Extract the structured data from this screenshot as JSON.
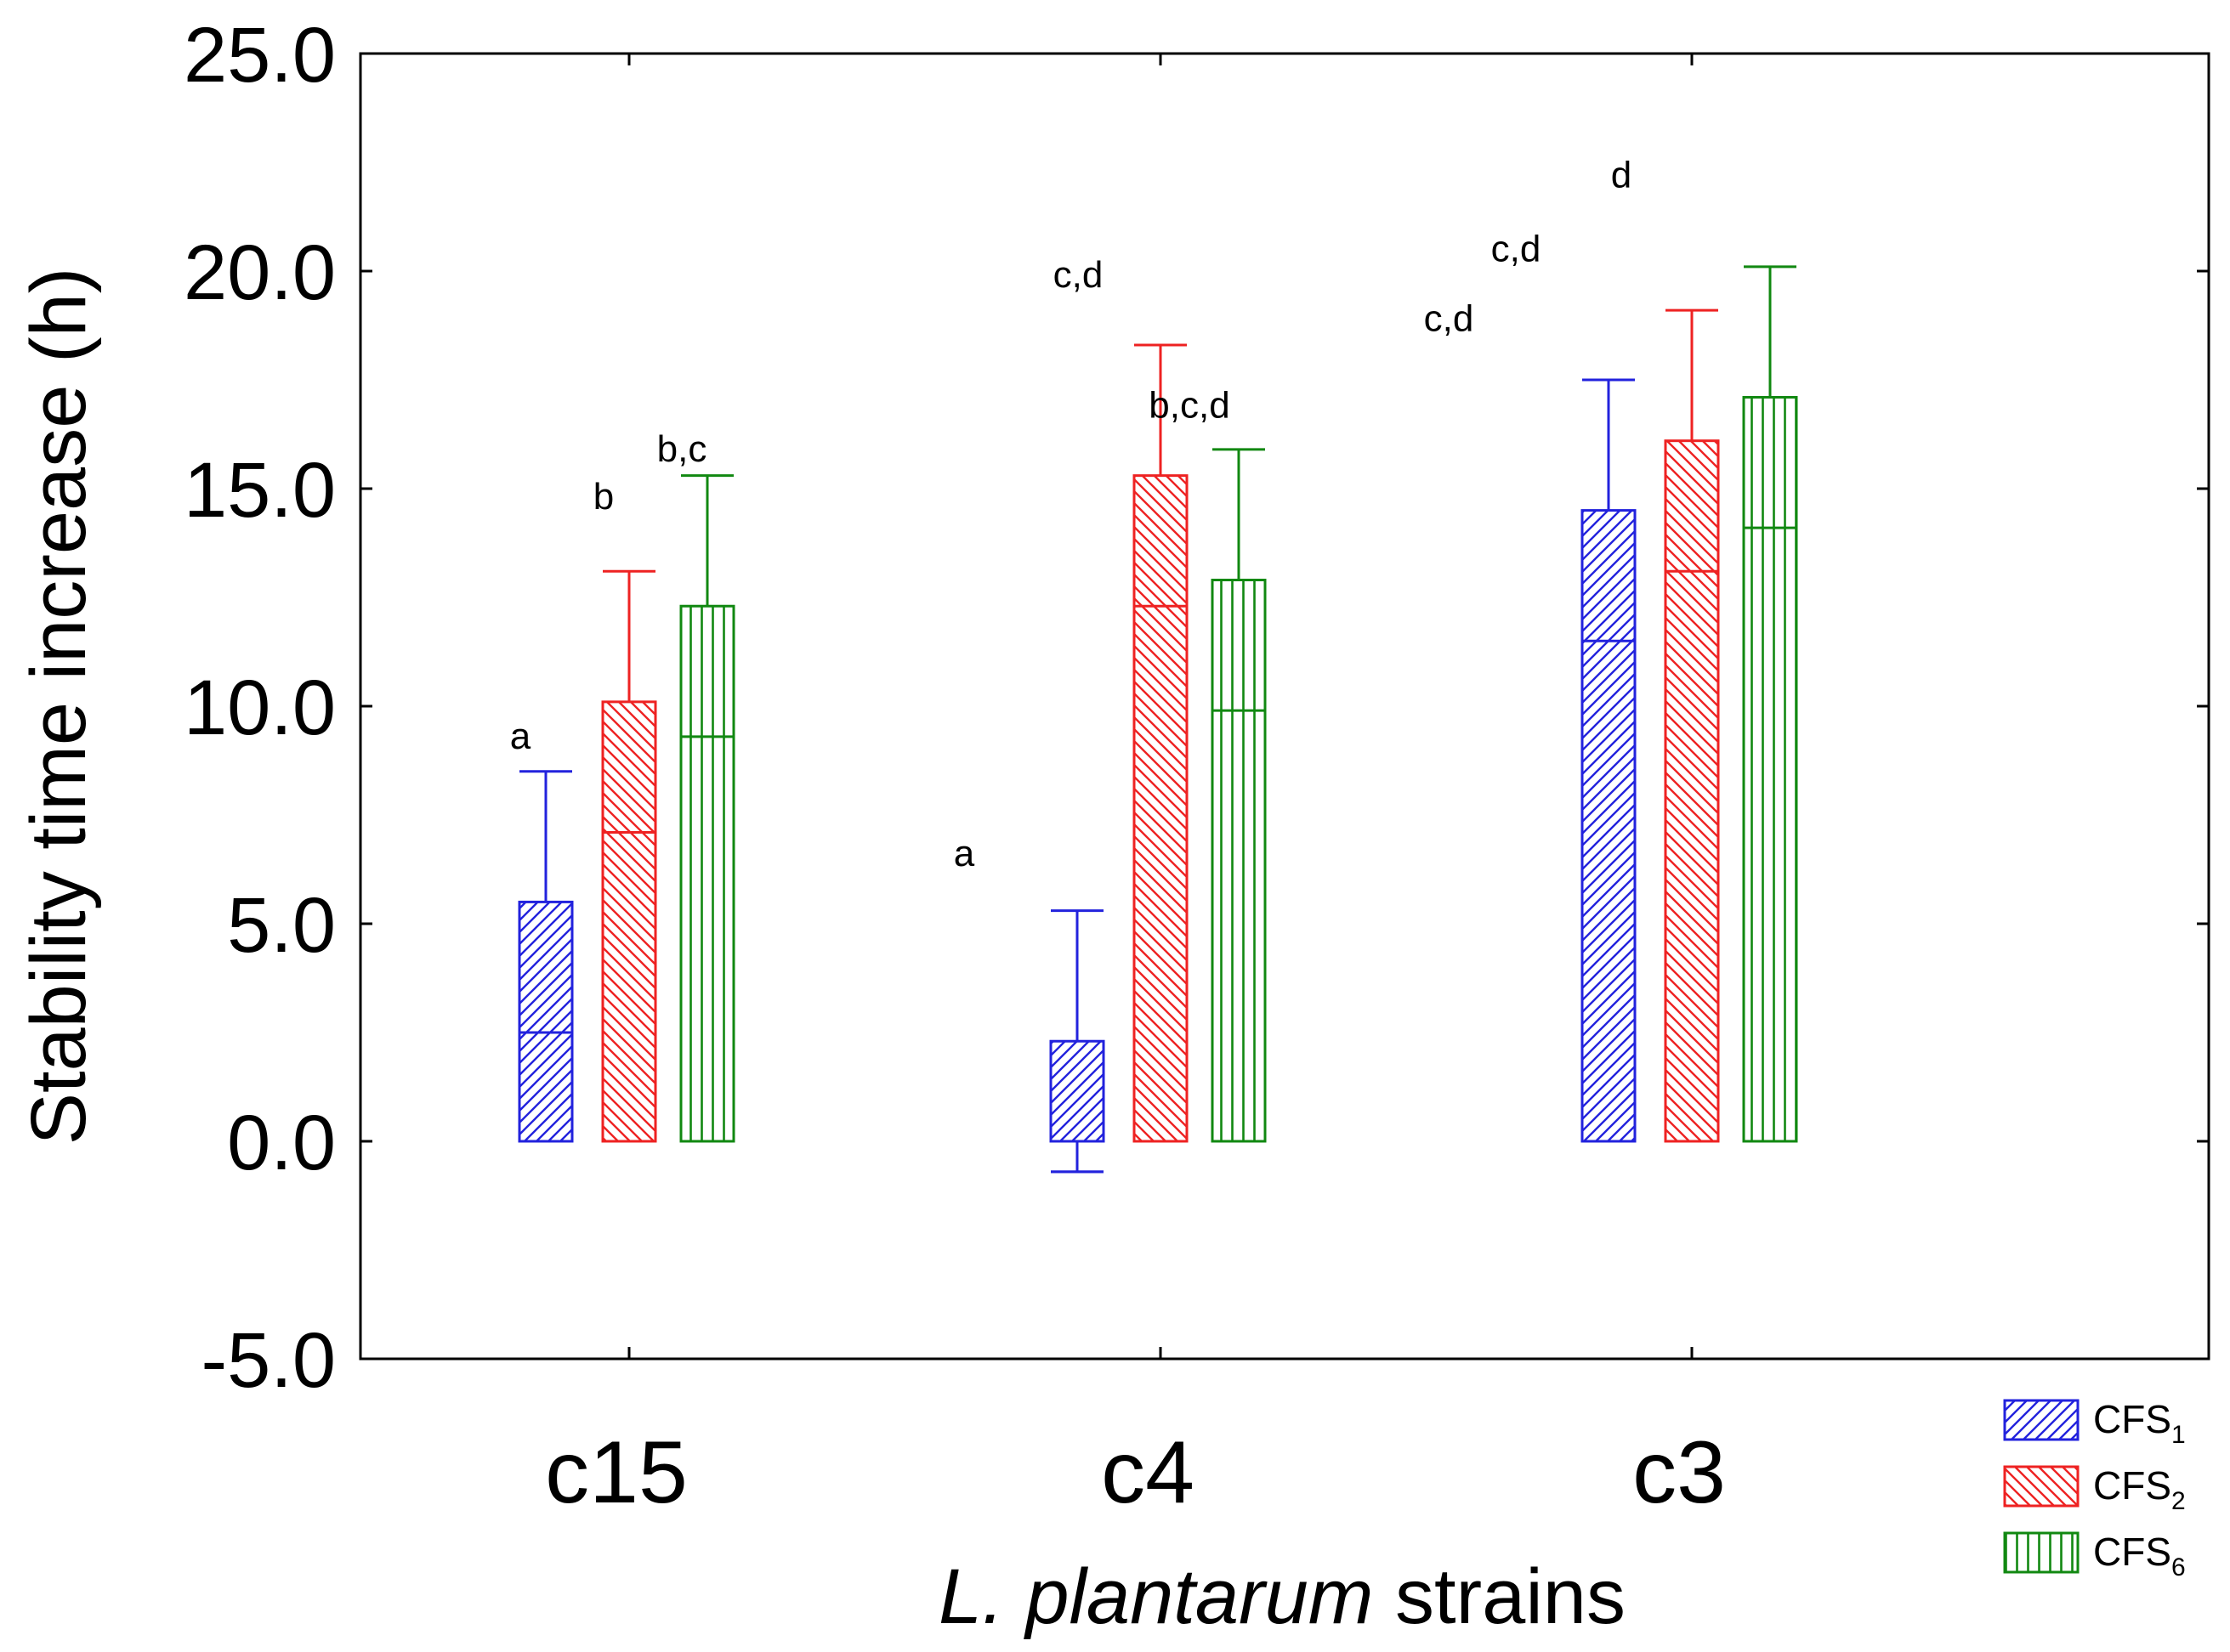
{
  "chart_data": {
    "type": "bar",
    "xlabel_italic": "L. plantarum",
    "xlabel_rest": " strains",
    "ylabel": "Stability time increase (h)",
    "ylim": [
      -5.0,
      25.0
    ],
    "yticks": [
      "-5.0",
      "0.0",
      "5.0",
      "10.0",
      "15.0",
      "20.0",
      "25.0"
    ],
    "ytick_values": [
      -5,
      0,
      5,
      10,
      15,
      20,
      25
    ],
    "categories": [
      "c15",
      "c4",
      "c3"
    ],
    "series": [
      {
        "name": "CFS1",
        "legend_base": "CFS",
        "legend_sub": "1",
        "color": "#2222dd",
        "pattern": "diag-up",
        "values": [
          5.5,
          2.3,
          14.5
        ],
        "err": [
          3.0,
          3.0,
          3.0
        ],
        "letters": [
          "a",
          "a",
          "c,d"
        ],
        "letter_y": [
          9.3,
          6.6,
          18.9
        ]
      },
      {
        "name": "CFS2",
        "legend_base": "CFS",
        "legend_sub": "2",
        "color": "#ee2222",
        "pattern": "diag-down",
        "values": [
          10.1,
          15.3,
          16.1
        ],
        "err": [
          3.0,
          3.0,
          3.0
        ],
        "letters": [
          "b",
          "c,d",
          "c,d"
        ],
        "letter_y": [
          14.8,
          19.9,
          20.5
        ]
      },
      {
        "name": "CFS6",
        "legend_base": "CFS",
        "legend_sub": "6",
        "color": "#118811",
        "pattern": "vertical",
        "values": [
          12.3,
          12.9,
          17.1
        ],
        "err": [
          3.0,
          3.0,
          3.0
        ],
        "letters": [
          "b,c",
          "b,c,d",
          "d"
        ],
        "letter_y": [
          15.9,
          16.9,
          22.2
        ]
      }
    ],
    "legend_position": "bottom-right",
    "grid": false
  }
}
